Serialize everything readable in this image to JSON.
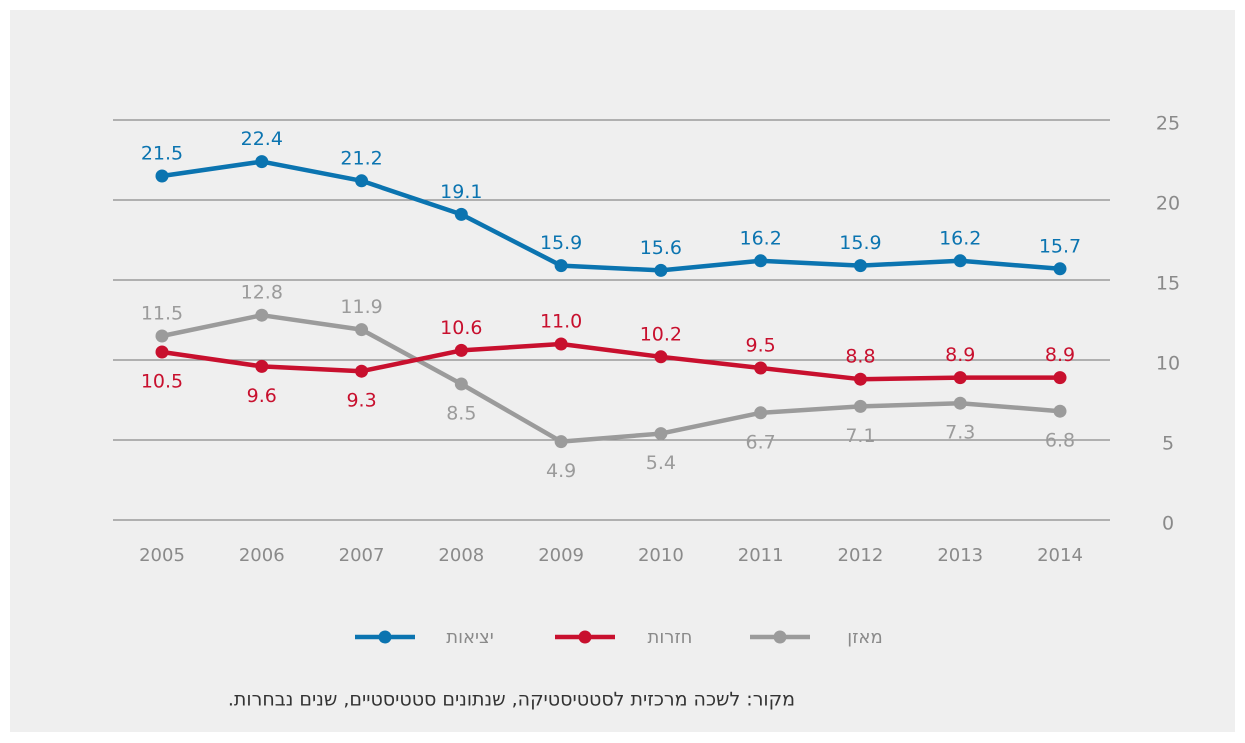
{
  "chart_data": {
    "type": "line",
    "categories": [
      "2005",
      "2006",
      "2007",
      "2008",
      "2009",
      "2010",
      "2011",
      "2012",
      "2013",
      "2014"
    ],
    "series": [
      {
        "name": "יציאות",
        "color": "#0b74b0",
        "values": [
          21.5,
          22.4,
          21.2,
          19.1,
          15.9,
          15.6,
          16.2,
          15.9,
          16.2,
          15.7
        ]
      },
      {
        "name": "חזרות",
        "color": "#c8102e",
        "values": [
          10.5,
          9.6,
          9.3,
          10.6,
          11.0,
          10.2,
          9.5,
          8.8,
          8.9,
          8.9
        ],
        "value_labels": [
          "10.5",
          "9.6",
          "9.3",
          "10.6",
          "11.0",
          "10.2",
          "9.5",
          "8.8",
          "8.9",
          "8.9"
        ]
      },
      {
        "name": "מאזן",
        "color": "#9b9b9b",
        "values": [
          11.5,
          12.8,
          11.9,
          8.5,
          4.9,
          5.4,
          6.7,
          7.1,
          7.3,
          6.8
        ]
      }
    ],
    "ylim": [
      0,
      25
    ],
    "yticks": [
      0,
      5,
      10,
      15,
      20,
      25
    ],
    "grid": true,
    "source": "מקור: לשכה מרכזית לסטטיסטיקה, שנתונים סטטיסטיים, שנים נבחרות."
  }
}
